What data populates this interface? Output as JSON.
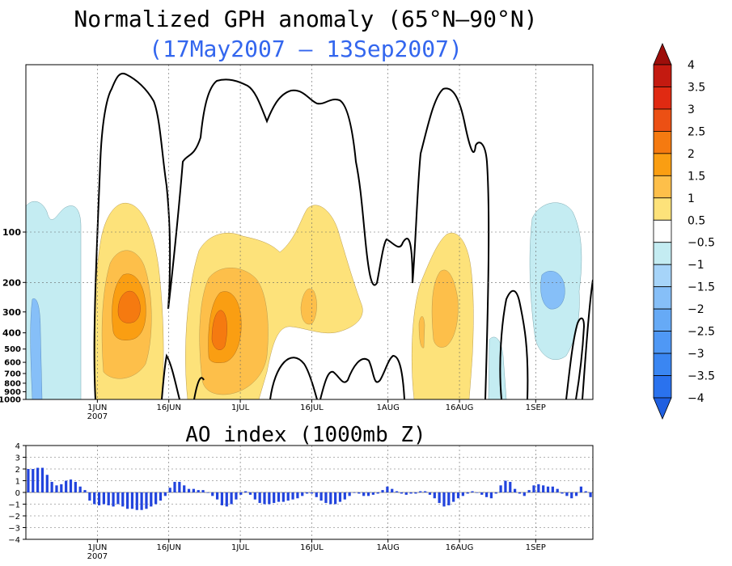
{
  "title": "Normalized GPH anomaly (65°N–90°N)",
  "subtitle": "(17May2007 – 13Sep2007)",
  "subtitle_color": "#3366ee",
  "chart_data": [
    {
      "type": "heatmap",
      "name": "gph",
      "title": "Normalized GPH anomaly (65°N–90°N)",
      "subtitle": "(17May2007 – 13Sep2007)",
      "x_axis": {
        "type": "date",
        "start": "2007-05-17",
        "end": "2007-09-13",
        "ticks": [
          {
            "date": "2007-06-01",
            "label": "1JUN",
            "sublabel": "2007"
          },
          {
            "date": "2007-06-16",
            "label": "16JUN"
          },
          {
            "date": "2007-07-01",
            "label": "1JUL"
          },
          {
            "date": "2007-07-16",
            "label": "16JUL"
          },
          {
            "date": "2007-08-01",
            "label": "1AUG"
          },
          {
            "date": "2007-08-16",
            "label": "16AUG"
          },
          {
            "date": "2007-09-01",
            "label": "1SEP"
          }
        ]
      },
      "y_axis": {
        "type": "log",
        "reversed": true,
        "unit": "hPa",
        "ticks": [
          "100",
          "200",
          "300",
          "400",
          "500",
          "600",
          "700",
          "800",
          "900",
          "1000"
        ]
      },
      "grid": true,
      "colorbar": {
        "levels": [
          -4,
          -3.5,
          -3,
          -2.5,
          -2,
          -1.5,
          -1,
          -0.5,
          0.5,
          1,
          1.5,
          2,
          2.5,
          3,
          3.5,
          4
        ],
        "labels": [
          "−4",
          "−3.5",
          "−3",
          "−2.5",
          "−2",
          "−1.5",
          "−1",
          "−0.5",
          "0.5",
          "1",
          "1.5",
          "2",
          "2.5",
          "3",
          "3.5",
          "4"
        ],
        "colors": [
          "#1f5fe0",
          "#2a72ee",
          "#3a86f2",
          "#4f98f5",
          "#66aaf6",
          "#86bff8",
          "#a6d4f9",
          "#c4ecf2",
          "#ffffff",
          "#fde27a",
          "#fdbf4a",
          "#fa9e12",
          "#f57a10",
          "#ec5014",
          "#e02a12",
          "#c41a10",
          "#9d0e0a"
        ]
      },
      "features": [
        {
          "kind": "positive",
          "label": "early June upper anomaly",
          "date_start": "2007-06-03",
          "date_end": "2007-06-15",
          "p_top": 70,
          "p_bottom": 1000,
          "max": 2.5
        },
        {
          "kind": "positive",
          "label": "late June–early July anomaly",
          "date_start": "2007-06-22",
          "date_end": "2007-07-14",
          "p_top": 110,
          "p_bottom": 1000,
          "max": 2.5
        },
        {
          "kind": "positive",
          "label": "mid July anomaly",
          "date_start": "2007-07-15",
          "date_end": "2007-07-27",
          "p_top": 85,
          "p_bottom": 420,
          "max": 1.5
        },
        {
          "kind": "positive",
          "label": "mid August anomaly",
          "date_start": "2007-08-10",
          "date_end": "2007-08-23",
          "p_top": 100,
          "p_bottom": 1000,
          "max": 2
        },
        {
          "kind": "negative",
          "label": "late May anomaly",
          "date_start": "2007-05-17",
          "date_end": "2007-05-29",
          "p_top": 70,
          "p_bottom": 1000,
          "min": -1.5
        },
        {
          "kind": "negative",
          "label": "September anomaly",
          "date_start": "2007-09-01",
          "date_end": "2007-09-12",
          "p_top": 70,
          "p_bottom": 700,
          "min": -1.5
        }
      ]
    },
    {
      "type": "bar",
      "name": "ao",
      "title": "AO index (1000mb Z)",
      "bar_color": "#2244dd",
      "ylim": [
        -4,
        4
      ],
      "y_ticks": [
        "4",
        "3",
        "2",
        "1",
        "0",
        "−1",
        "−2",
        "−3",
        "−4"
      ],
      "grid": true,
      "x_axis": {
        "type": "date",
        "start": "2007-05-17",
        "end": "2007-09-13",
        "ticks": [
          {
            "date": "2007-06-01",
            "label": "1JUN",
            "sublabel": "2007"
          },
          {
            "date": "2007-06-16",
            "label": "16JUN"
          },
          {
            "date": "2007-07-01",
            "label": "1JUL"
          },
          {
            "date": "2007-07-16",
            "label": "16JUL"
          },
          {
            "date": "2007-08-01",
            "label": "1AUG"
          },
          {
            "date": "2007-08-16",
            "label": "16AUG"
          },
          {
            "date": "2007-09-01",
            "label": "1SEP"
          }
        ]
      },
      "values": [
        2.0,
        2.0,
        2.1,
        2.1,
        1.5,
        0.9,
        0.6,
        0.7,
        1.0,
        1.1,
        0.9,
        0.5,
        0.2,
        -0.7,
        -1.0,
        -1.1,
        -1.0,
        -1.1,
        -1.2,
        -1.0,
        -1.2,
        -1.4,
        -1.4,
        -1.5,
        -1.5,
        -1.4,
        -1.2,
        -1.0,
        -0.7,
        -0.3,
        0.4,
        0.9,
        0.9,
        0.6,
        0.3,
        0.3,
        0.2,
        0.2,
        0.0,
        -0.3,
        -0.6,
        -1.1,
        -1.2,
        -1.0,
        -0.6,
        -0.2,
        0.1,
        -0.2,
        -0.6,
        -0.9,
        -1.0,
        -1.0,
        -0.9,
        -0.8,
        -0.8,
        -0.7,
        -0.6,
        -0.5,
        -0.3,
        -0.1,
        -0.1,
        -0.4,
        -0.7,
        -0.9,
        -1.0,
        -1.0,
        -0.8,
        -0.6,
        -0.3,
        0.0,
        -0.1,
        -0.3,
        -0.3,
        -0.2,
        -0.1,
        0.2,
        0.5,
        0.3,
        0.1,
        -0.1,
        -0.2,
        -0.1,
        -0.1,
        0.1,
        0.1,
        -0.2,
        -0.5,
        -0.9,
        -1.2,
        -1.1,
        -0.8,
        -0.5,
        -0.3,
        -0.1,
        0.1,
        0.0,
        -0.2,
        -0.4,
        -0.5,
        -0.1,
        0.6,
        1.0,
        0.9,
        0.3,
        -0.1,
        -0.3,
        0.2,
        0.6,
        0.7,
        0.6,
        0.5,
        0.5,
        0.3,
        -0.1,
        -0.3,
        -0.5,
        -0.3,
        0.5,
        0.1,
        -0.4
      ]
    }
  ]
}
